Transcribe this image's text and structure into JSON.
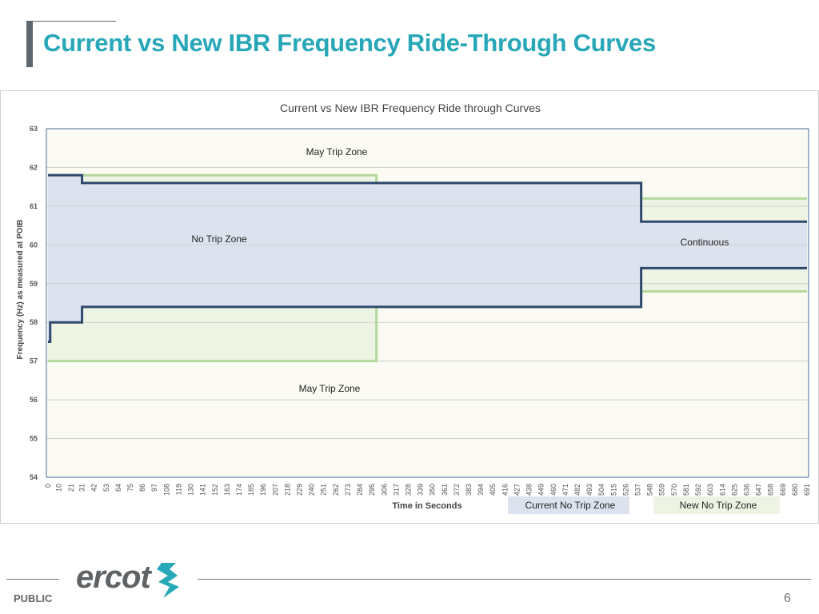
{
  "slide": {
    "title": "Current vs New IBR Frequency Ride-Through Curves",
    "footer_label": "PUBLIC",
    "page_number": "6",
    "logo_text": "ercot"
  },
  "chart_data": {
    "type": "line",
    "title": "Current vs New IBR Frequency Ride through Curves",
    "xlabel": "Time in Seconds",
    "ylabel": "Frequency (Hz) as measured at POIB",
    "ylim": [
      54,
      63
    ],
    "yticks": [
      54,
      55,
      56,
      57,
      58,
      59,
      60,
      61,
      62,
      63
    ],
    "xlim": [
      0,
      691
    ],
    "xticks": [
      0,
      10,
      21,
      31,
      42,
      53,
      64,
      75,
      86,
      97,
      108,
      119,
      130,
      141,
      152,
      163,
      174,
      185,
      196,
      207,
      218,
      229,
      240,
      251,
      262,
      273,
      284,
      295,
      306,
      317,
      328,
      339,
      350,
      361,
      372,
      383,
      394,
      405,
      416,
      427,
      438,
      449,
      460,
      471,
      482,
      493,
      504,
      515,
      526,
      537,
      548,
      559,
      570,
      581,
      592,
      603,
      614,
      625,
      636,
      647,
      658,
      669,
      680,
      691
    ],
    "grid": true,
    "legend_position": "bottom-right",
    "colors": {
      "current": "#2e4a6e",
      "current_fill": "#dde3ee",
      "new": "#b2d89a",
      "new_fill": "#eef4e3",
      "background": "#fbfbf3"
    },
    "series": [
      {
        "name": "Current No Trip Zone",
        "upper": [
          [
            0,
            31,
            61.8
          ],
          [
            31,
            540,
            61.6
          ],
          [
            540,
            691,
            60.6
          ]
        ],
        "lower": [
          [
            0,
            2,
            57.5
          ],
          [
            2,
            31,
            58.0
          ],
          [
            31,
            540,
            58.4
          ],
          [
            540,
            691,
            59.4
          ]
        ]
      },
      {
        "name": "New No Trip Zone",
        "upper": [
          [
            0,
            299,
            61.8
          ],
          [
            299,
            540,
            61.6
          ],
          [
            540,
            691,
            61.2
          ]
        ],
        "lower": [
          [
            0,
            299,
            57.0
          ],
          [
            299,
            540,
            58.4
          ],
          [
            540,
            691,
            58.8
          ]
        ]
      }
    ],
    "annotations": [
      "May Trip Zone",
      "No Trip Zone",
      "Continuous",
      "May Trip Zone"
    ]
  }
}
